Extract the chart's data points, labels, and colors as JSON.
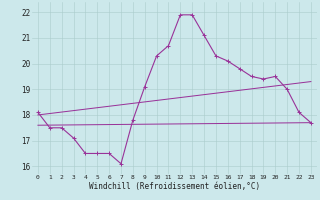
{
  "background_color": "#cce8eb",
  "grid_color": "#aacccc",
  "line_color": "#993399",
  "x_label": "Windchill (Refroidissement éolien,°C)",
  "ylim": [
    15.7,
    22.4
  ],
  "xlim": [
    -0.5,
    23.5
  ],
  "yticks": [
    16,
    17,
    18,
    19,
    20,
    21,
    22
  ],
  "xticks": [
    0,
    1,
    2,
    3,
    4,
    5,
    6,
    7,
    8,
    9,
    10,
    11,
    12,
    13,
    14,
    15,
    16,
    17,
    18,
    19,
    20,
    21,
    22,
    23
  ],
  "curve1_x": [
    0,
    1,
    2,
    3,
    4,
    5,
    6,
    7,
    8,
    9,
    10,
    11,
    12,
    13,
    14,
    15,
    16,
    17,
    18,
    19,
    20,
    21,
    22,
    23
  ],
  "curve1_y": [
    18.1,
    17.5,
    17.5,
    17.1,
    16.5,
    16.5,
    16.5,
    16.1,
    17.8,
    19.1,
    20.3,
    20.7,
    21.9,
    21.9,
    21.1,
    20.3,
    20.1,
    19.8,
    19.5,
    19.4,
    19.5,
    19.0,
    18.1,
    17.7
  ],
  "curve2_x": [
    0,
    23
  ],
  "curve2_y": [
    17.6,
    17.7
  ],
  "curve3_x": [
    0,
    23
  ],
  "curve3_y": [
    18.0,
    19.3
  ],
  "xtick_fontsize": 4.5,
  "ytick_fontsize": 5.5,
  "xlabel_fontsize": 5.5,
  "linewidth": 0.8,
  "marker_size": 2.5
}
